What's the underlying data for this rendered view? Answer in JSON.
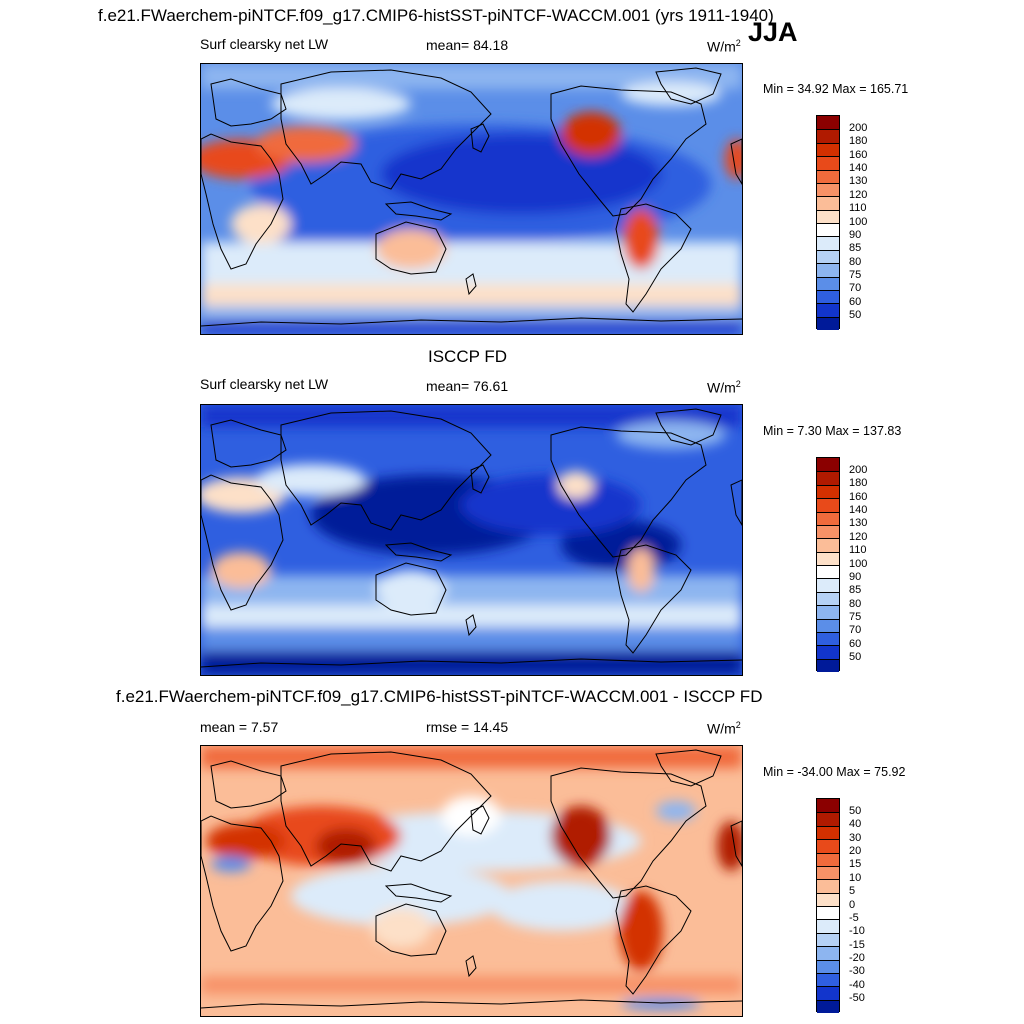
{
  "season": "JJA",
  "units_base": "W/m",
  "units_exp": "2",
  "panels": [
    {
      "id": "model",
      "title": "f.e21.FWaerchem-piNTCF.f09_g17.CMIP6-histSST-piNTCF-WACCM.001 (yrs 1911-1940)",
      "variable": "Surf clearsky net LW",
      "stat": "mean=  84.18",
      "minmax": "Min =  34.92 Max = 165.71",
      "ticks": [
        "200",
        "180",
        "160",
        "140",
        "130",
        "120",
        "110",
        "100",
        "90",
        "85",
        "80",
        "75",
        "70",
        "60",
        "50"
      ],
      "colors": [
        "#8b0000",
        "#b01a00",
        "#d33000",
        "#e84a1a",
        "#f06b3c",
        "#f79267",
        "#fbbd98",
        "#fde0c8",
        "#ffffff",
        "#dcebfa",
        "#b5d1f5",
        "#8db5f0",
        "#5b8ee8",
        "#2f5fe0",
        "#1235cc",
        "#001a99"
      ]
    },
    {
      "id": "obs",
      "title": "ISCCP FD",
      "variable": "Surf clearsky net LW",
      "stat": "mean=  76.61",
      "minmax": "Min =   7.30 Max = 137.83",
      "ticks": [
        "200",
        "180",
        "160",
        "140",
        "130",
        "120",
        "110",
        "100",
        "90",
        "85",
        "80",
        "75",
        "70",
        "60",
        "50"
      ],
      "colors": [
        "#8b0000",
        "#b01a00",
        "#d33000",
        "#e84a1a",
        "#f06b3c",
        "#f79267",
        "#fbbd98",
        "#fde0c8",
        "#ffffff",
        "#dcebfa",
        "#b5d1f5",
        "#8db5f0",
        "#5b8ee8",
        "#2f5fe0",
        "#1235cc",
        "#001a99"
      ]
    },
    {
      "id": "diff",
      "title": "f.e21.FWaerchem-piNTCF.f09_g17.CMIP6-histSST-piNTCF-WACCM.001 - ISCCP FD",
      "variable": "mean =   7.57",
      "stat": "rmse =  14.45",
      "minmax": "Min = -34.00 Max =  75.92",
      "ticks": [
        "50",
        "40",
        "30",
        "20",
        "15",
        "10",
        "5",
        "0",
        "-5",
        "-10",
        "-15",
        "-20",
        "-30",
        "-40",
        "-50"
      ],
      "colors": [
        "#8b0000",
        "#b01a00",
        "#d33000",
        "#e84a1a",
        "#f06b3c",
        "#f79267",
        "#fbbd98",
        "#fde0c8",
        "#ffffff",
        "#dcebfa",
        "#b5d1f5",
        "#8db5f0",
        "#5b8ee8",
        "#2f5fe0",
        "#1235cc",
        "#001a99"
      ]
    }
  ]
}
